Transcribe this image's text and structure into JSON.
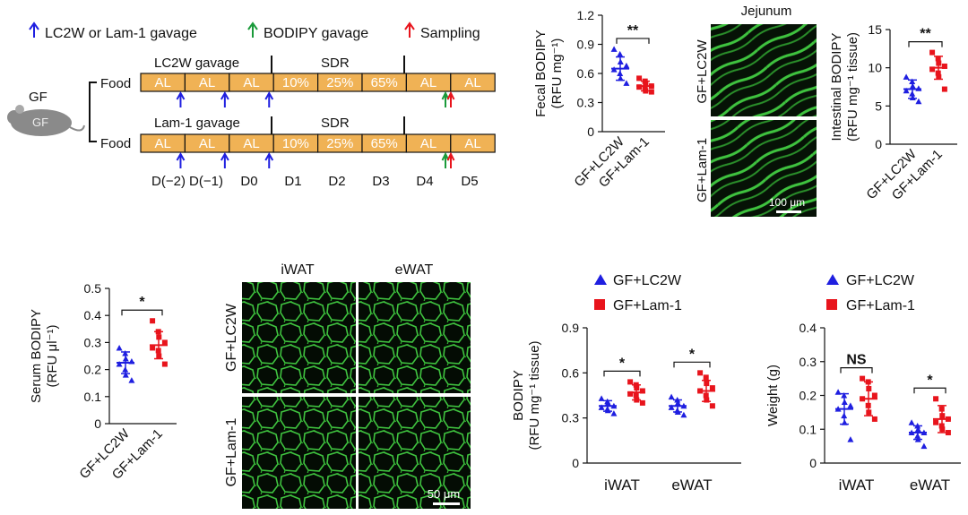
{
  "colors": {
    "blue": "#1f1fe0",
    "red": "#e8141c",
    "green": "#1a9a3a",
    "bar": "#f0b255",
    "micro_bg": "#061206",
    "micro_fg": "#3fc33f"
  },
  "schematic": {
    "legend": [
      {
        "label": "LC2W or Lam-1 gavage",
        "color": "blue",
        "icon": "arrow-up-icon"
      },
      {
        "label": "BODIPY gavage",
        "color": "green",
        "icon": "arrow-up-icon"
      },
      {
        "label": "Sampling",
        "color": "red",
        "icon": "arrow-up-icon"
      }
    ],
    "gf_label": "GF",
    "mouse_label": "GF",
    "food_label": "Food",
    "rows": [
      {
        "title": "LC2W gavage",
        "sdr": "SDR"
      },
      {
        "title": "Lam-1 gavage",
        "sdr": "SDR"
      }
    ],
    "segments": [
      "AL",
      "AL",
      "AL",
      "10%",
      "25%",
      "65%",
      "AL",
      "AL"
    ],
    "days": [
      "D(−2)",
      "D(−1)",
      "D0",
      "D1",
      "D2",
      "D3",
      "D4",
      "D5"
    ]
  },
  "micrographs": {
    "jejunum_title": "Jejunum",
    "jejunum_rows": [
      "GF+LC2W",
      "GF+Lam-1"
    ],
    "jejunum_scale": "100 μm",
    "wat_cols": [
      "iWAT",
      "eWAT"
    ],
    "wat_rows": [
      "GF+LC2W",
      "GF+Lam-1"
    ],
    "wat_scale": "50 μm"
  },
  "legend_groups": [
    "GF+LC2W",
    "GF+Lam-1"
  ],
  "chart_data": [
    {
      "id": "fecal",
      "type": "scatter",
      "ylabel": "Fecal BODIPY",
      "yunit": "(RFU mg⁻¹)",
      "ylim": [
        0,
        1.2
      ],
      "yticks": [
        "0",
        "0.3",
        "0.6",
        "0.9",
        "1.2"
      ],
      "categories": [
        "GF+LC2W",
        "GF+Lam-1"
      ],
      "significance": "**",
      "series": [
        {
          "name": "GF+LC2W",
          "mean": 0.65,
          "sd": 0.12,
          "values": [
            0.85,
            0.8,
            0.72,
            0.68,
            0.64,
            0.6,
            0.55,
            0.5
          ]
        },
        {
          "name": "GF+Lam-1",
          "mean": 0.47,
          "sd": 0.05,
          "values": [
            0.55,
            0.52,
            0.49,
            0.47,
            0.46,
            0.44,
            0.42,
            0.41
          ]
        }
      ]
    },
    {
      "id": "intestinal",
      "type": "scatter",
      "ylabel": "Intestinal BODIPY",
      "yunit": "(RFU mg⁻¹ tissue)",
      "ylim": [
        0,
        15
      ],
      "yticks": [
        "0",
        "5",
        "10",
        "15"
      ],
      "categories": [
        "GF+LC2W",
        "GF+Lam-1"
      ],
      "significance": "**",
      "series": [
        {
          "name": "GF+LC2W",
          "mean": 7.2,
          "sd": 1.2,
          "values": [
            8.8,
            8.2,
            7.6,
            7.3,
            7.0,
            6.6,
            6.1,
            5.6
          ]
        },
        {
          "name": "GF+Lam-1",
          "mean": 10.0,
          "sd": 1.5,
          "values": [
            12.0,
            11.2,
            10.6,
            10.2,
            9.8,
            9.3,
            8.8,
            7.2
          ]
        }
      ]
    },
    {
      "id": "serum",
      "type": "scatter",
      "ylabel": "Serum BODIPY",
      "yunit": "(RFU μl⁻¹)",
      "ylim": [
        0,
        0.5
      ],
      "yticks": [
        "0",
        "0.1",
        "0.2",
        "0.3",
        "0.4",
        "0.5"
      ],
      "categories": [
        "GF+LC2W",
        "GF+Lam-1"
      ],
      "significance": "*",
      "series": [
        {
          "name": "GF+LC2W",
          "mean": 0.225,
          "sd": 0.04,
          "values": [
            0.28,
            0.26,
            0.24,
            0.23,
            0.22,
            0.2,
            0.18,
            0.16
          ]
        },
        {
          "name": "GF+Lam-1",
          "mean": 0.29,
          "sd": 0.05,
          "values": [
            0.38,
            0.34,
            0.32,
            0.3,
            0.28,
            0.27,
            0.25,
            0.22
          ]
        }
      ]
    },
    {
      "id": "wat_bodipy",
      "type": "scatter",
      "ylabel": "BODIPY",
      "yunit": "(RFU mg⁻¹ tissue)",
      "ylim": [
        0,
        0.9
      ],
      "yticks": [
        "0",
        "0.3",
        "0.6",
        "0.9"
      ],
      "categories": [
        "iWAT",
        "eWAT"
      ],
      "significance": [
        "*",
        "*"
      ],
      "series": [
        {
          "name": "GF+LC2W",
          "means": [
            0.38,
            0.38
          ],
          "sds": [
            0.035,
            0.04
          ],
          "values": [
            [
              0.43,
              0.41,
              0.4,
              0.38,
              0.37,
              0.36,
              0.35,
              0.33
            ],
            [
              0.44,
              0.42,
              0.4,
              0.38,
              0.37,
              0.35,
              0.34,
              0.32
            ]
          ]
        },
        {
          "name": "GF+Lam-1",
          "means": [
            0.47,
            0.48
          ],
          "sds": [
            0.05,
            0.07
          ],
          "values": [
            [
              0.54,
              0.52,
              0.5,
              0.48,
              0.46,
              0.45,
              0.42,
              0.4
            ],
            [
              0.6,
              0.57,
              0.53,
              0.5,
              0.48,
              0.45,
              0.42,
              0.38
            ]
          ]
        }
      ]
    },
    {
      "id": "weight",
      "type": "scatter",
      "ylabel": "Weight (g)",
      "yunit": "",
      "ylim": [
        0,
        0.4
      ],
      "yticks": [
        "0",
        "0.1",
        "0.2",
        "0.3",
        "0.4"
      ],
      "categories": [
        "iWAT",
        "eWAT"
      ],
      "significance": [
        "NS",
        "*"
      ],
      "series": [
        {
          "name": "GF+LC2W",
          "means": [
            0.16,
            0.09
          ],
          "sds": [
            0.045,
            0.02
          ],
          "values": [
            [
              0.21,
              0.2,
              0.18,
              0.17,
              0.16,
              0.14,
              0.12,
              0.07
            ],
            [
              0.12,
              0.11,
              0.1,
              0.09,
              0.09,
              0.08,
              0.07,
              0.05
            ]
          ]
        },
        {
          "name": "GF+Lam-1",
          "means": [
            0.19,
            0.13
          ],
          "sds": [
            0.05,
            0.04
          ],
          "values": [
            [
              0.25,
              0.24,
              0.22,
              0.2,
              0.19,
              0.17,
              0.15,
              0.13
            ],
            [
              0.19,
              0.16,
              0.14,
              0.13,
              0.12,
              0.11,
              0.1,
              0.09
            ]
          ]
        }
      ]
    }
  ]
}
